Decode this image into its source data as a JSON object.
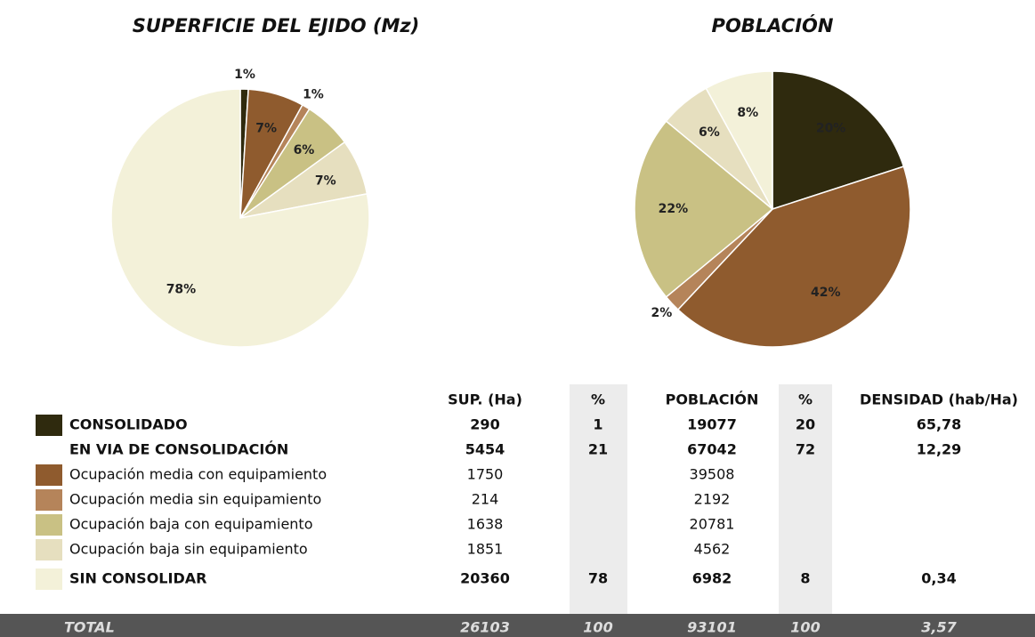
{
  "chart_data": [
    {
      "type": "pie",
      "title": "SUPERFICIE DEL EJIDO (Mz)",
      "values": [
        1,
        7,
        1,
        6,
        7,
        78
      ],
      "value_labels": [
        "1%",
        "7%",
        "1%",
        "6%",
        "7%",
        "78%"
      ],
      "colors": [
        "#2f2a0e",
        "#8f5b2e",
        "#b5845a",
        "#c9c184",
        "#e6dfbf",
        "#f3f1d9"
      ]
    },
    {
      "type": "pie",
      "title": "POBLACIÓN",
      "values": [
        20,
        42,
        2,
        22,
        6,
        8
      ],
      "value_labels": [
        "20%",
        "42%",
        "2%",
        "22%",
        "6%",
        "8%"
      ],
      "colors": [
        "#2f2a0e",
        "#8f5b2e",
        "#b5845a",
        "#c9c184",
        "#e6dfbf",
        "#f3f1d9"
      ]
    }
  ],
  "table": {
    "header": [
      "SUP. (Ha)",
      "%",
      "POBLACIÓN",
      "%",
      "DENSIDAD (hab/Ha)"
    ],
    "rows": [
      {
        "label": "CONSOLIDADO",
        "color": "#2f2a0e",
        "sup": 290,
        "sup_pct": 1,
        "pob": 19077,
        "pob_pct": 20,
        "dens": "65,78"
      },
      {
        "label": "EN VIA DE CONSOLIDACIÓN",
        "sup": 5454,
        "sup_pct": 21,
        "pob": 67042,
        "pob_pct": 72,
        "dens": "12,29"
      },
      {
        "label": "Ocupación media con equipamiento",
        "color": "#8f5b2e",
        "sup": 1750,
        "pob": 39508
      },
      {
        "label": "Ocupación media sin equipamiento",
        "color": "#b5845a",
        "sup": 214,
        "pob": 2192
      },
      {
        "label": "Ocupación baja con equipamiento",
        "color": "#c9c184",
        "sup": 1638,
        "pob": 20781
      },
      {
        "label": "Ocupación baja sin equipamiento",
        "color": "#e6dfbf",
        "sup": 1851,
        "pob": 4562
      },
      {
        "label": "SIN CONSOLIDAR",
        "color": "#f3f1d9",
        "sup": 20360,
        "sup_pct": 78,
        "pob": 6982,
        "pob_pct": 8,
        "dens": "0,34"
      }
    ],
    "total": {
      "label": "TOTAL",
      "sup": 26103,
      "sup_pct": 100,
      "pob": 93101,
      "pob_pct": 100,
      "dens": "3,57"
    }
  }
}
